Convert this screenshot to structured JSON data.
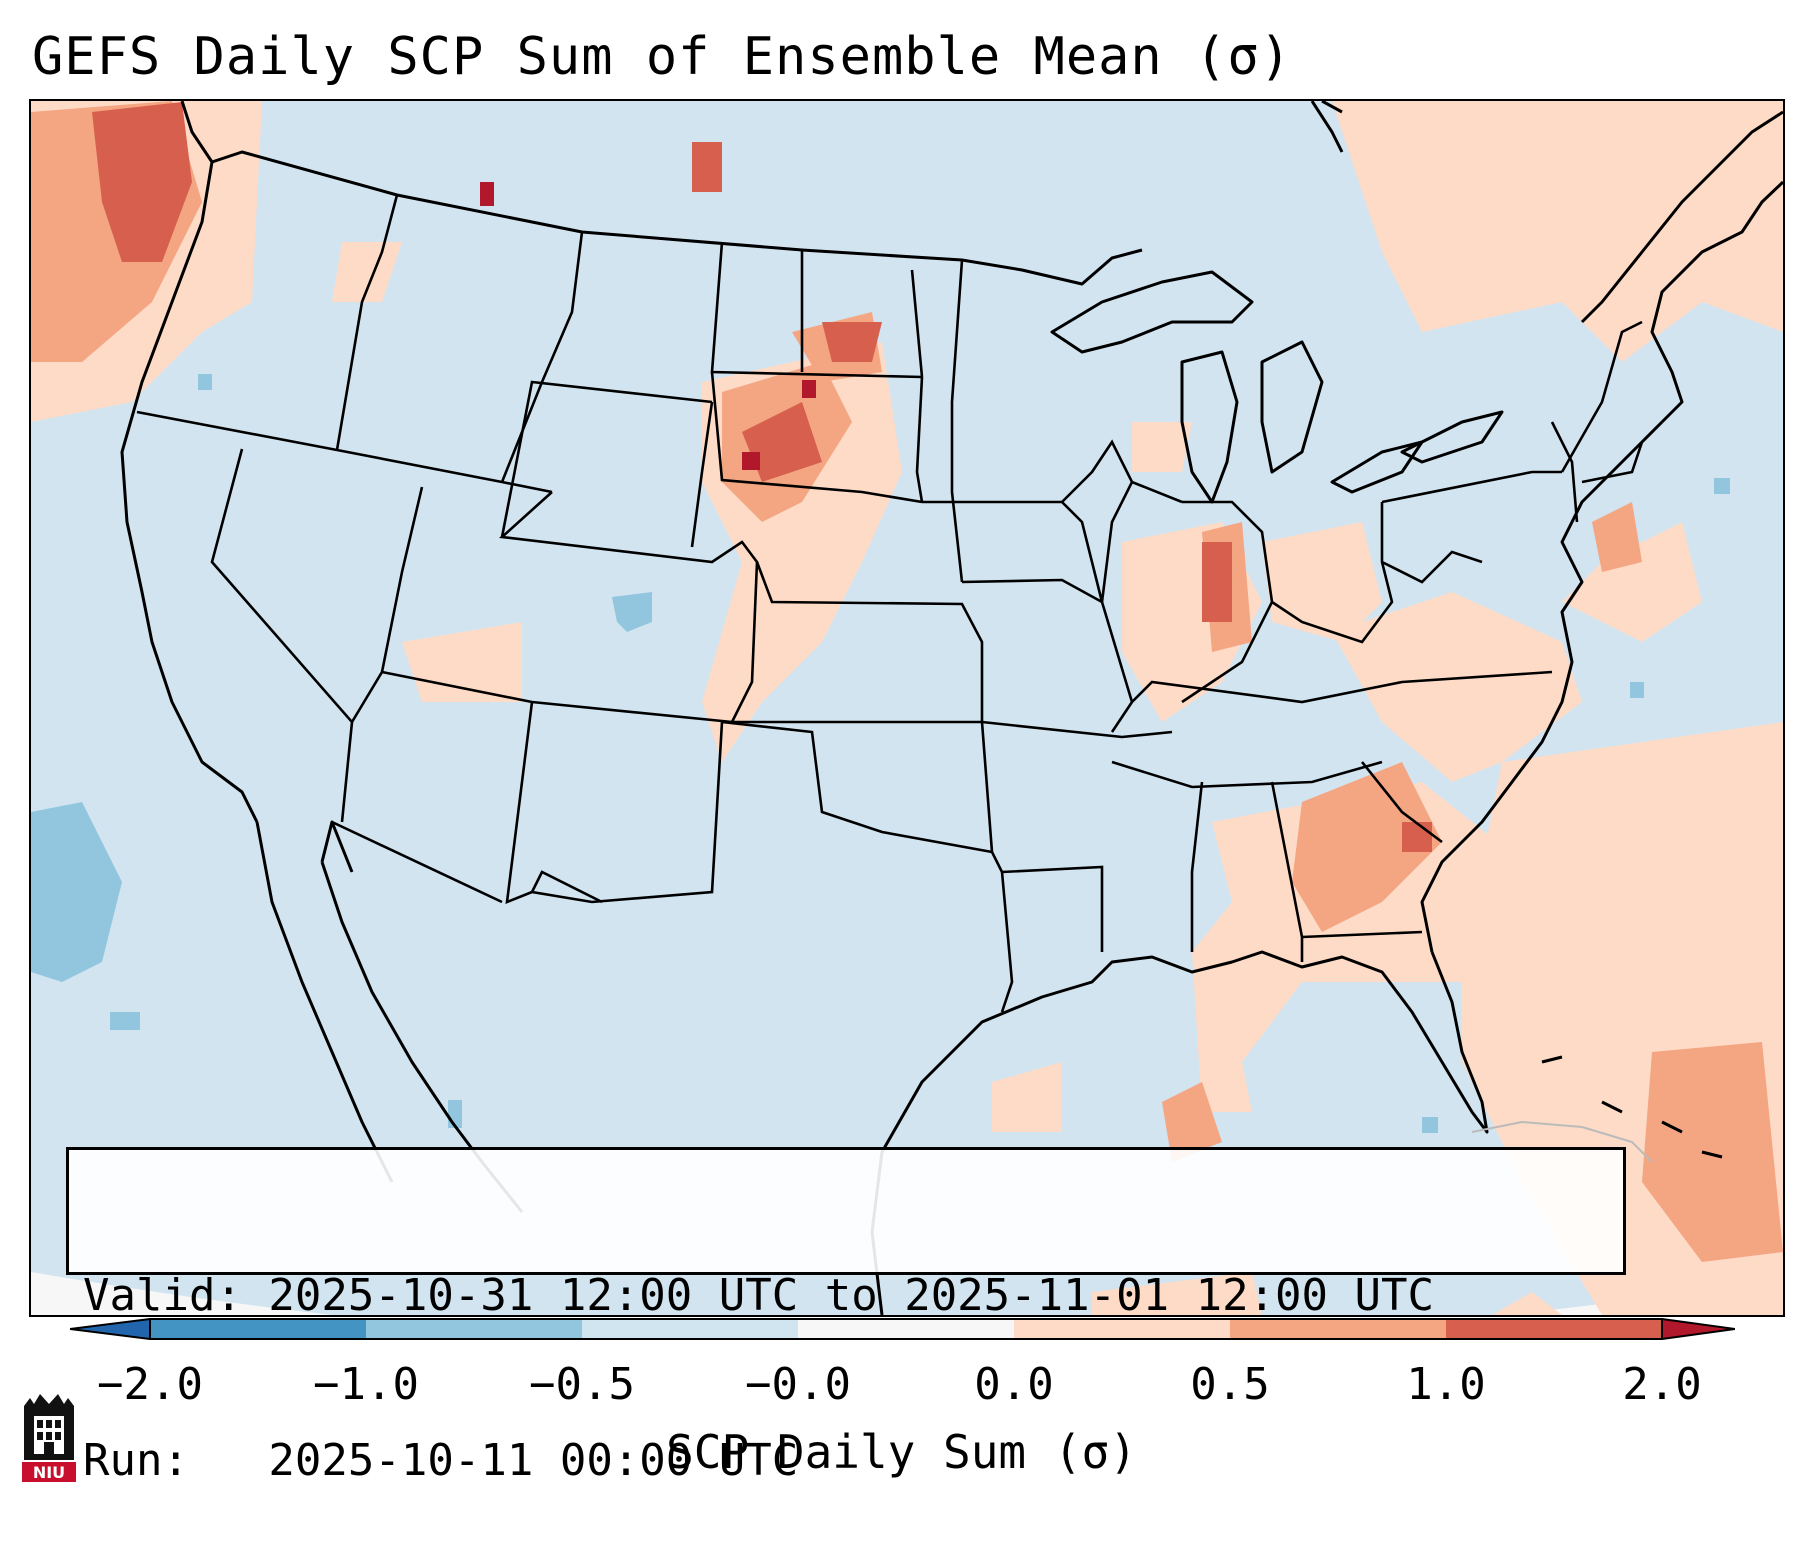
{
  "title": "GEFS Daily SCP Sum of Ensemble Mean (σ)",
  "info": {
    "valid_line": "Valid: 2025-10-31 12:00 UTC to 2025-11-01 12:00 UTC",
    "run_line": "Run:   2025-10-11 00:00 UTC"
  },
  "colorbar": {
    "label": "SCP Daily Sum (σ)",
    "ticks": [
      "−2.0",
      "−1.0",
      "−0.5",
      "−0.0",
      "0.0",
      "0.5",
      "1.0",
      "2.0"
    ],
    "bins": [
      {
        "range": "< -2.0",
        "color": "#2166ac"
      },
      {
        "range": "-2.0 to -1.0",
        "color": "#4393c3"
      },
      {
        "range": "-1.0 to -0.5",
        "color": "#92c5de"
      },
      {
        "range": "-0.5 to -0.0",
        "color": "#d1e5f0"
      },
      {
        "range": "-0.0 to 0.0",
        "color": "#f7f7f7"
      },
      {
        "range": "0.0 to 0.5",
        "color": "#fddbc7"
      },
      {
        "range": "0.5 to 1.0",
        "color": "#f4a582"
      },
      {
        "range": "1.0 to 2.0",
        "color": "#d6604d"
      },
      {
        "range": "> 2.0",
        "color": "#b2182b"
      }
    ]
  },
  "logo": {
    "text": "NIU",
    "name": "Northern Illinois University"
  },
  "map": {
    "background_color": "#d2e4f0",
    "region": "Contiguous United States"
  }
}
